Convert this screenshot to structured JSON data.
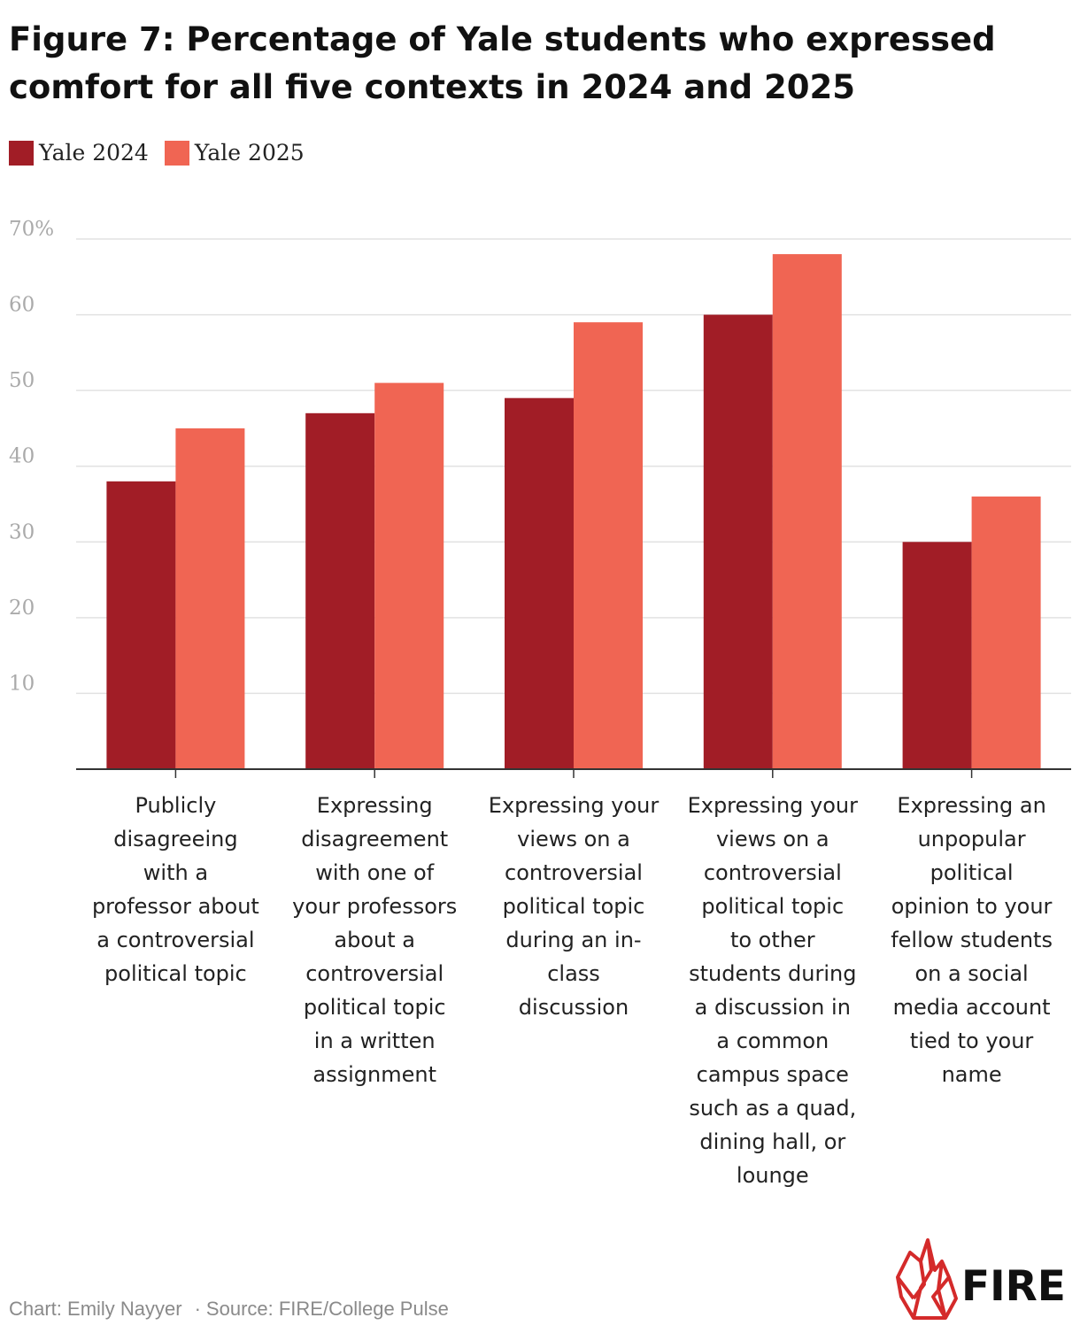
{
  "title": "Figure 7: Percentage of Yale students who expressed comfort for all five contexts in 2024 and 2025",
  "legend": [
    {
      "label": "Yale 2024",
      "color": "#a11d26"
    },
    {
      "label": "Yale 2025",
      "color": "#f06553"
    }
  ],
  "chart_data": {
    "type": "bar",
    "categories": [
      "Publicly disagreeing with a professor about a controversial political topic",
      "Expressing disagreement with one of your professors about a controversial political topic in a written assignment",
      "Expressing your views on a controversial political topic during an in-class discussion",
      "Expressing your views on a controversial political topic to other students during a discussion in a common campus space such as a quad, dining hall, or lounge",
      "Expressing an unpopular political opinion to your fellow students on a social media account tied to your name"
    ],
    "category_lines": [
      [
        "Publicly",
        "disagreeing",
        "with a",
        "professor about",
        "a controversial",
        "political topic"
      ],
      [
        "Expressing",
        "disagreement",
        "with one of",
        "your professors",
        "about a",
        "controversial",
        "political topic",
        "in a written",
        "assignment"
      ],
      [
        "Expressing your",
        "views on a",
        "controversial",
        "political topic",
        "during an in-",
        "class",
        "discussion"
      ],
      [
        "Expressing your",
        "views on a",
        "controversial",
        "political topic",
        "to other",
        "students during",
        "a discussion in",
        "a common",
        "campus space",
        "such as a quad,",
        "dining hall, or",
        "lounge"
      ],
      [
        "Expressing an",
        "unpopular",
        "political",
        "opinion to your",
        "fellow students",
        "on a social",
        "media account",
        "tied to your",
        "name"
      ]
    ],
    "series": [
      {
        "name": "Yale 2024",
        "values": [
          38,
          47,
          49,
          60,
          30
        ]
      },
      {
        "name": "Yale 2025",
        "values": [
          45,
          51,
          59,
          68,
          36
        ]
      }
    ],
    "yticks": [
      10,
      20,
      30,
      40,
      50,
      60,
      70
    ],
    "ytick_labels": [
      "10",
      "20",
      "30",
      "40",
      "50",
      "60",
      "70%"
    ],
    "ylim": [
      0,
      70
    ],
    "grid": true,
    "legend_position": "top-left"
  },
  "footer": {
    "credit": "Chart: Emily Nayyer",
    "separator": "·",
    "source": "Source: FIRE/College Pulse"
  },
  "logo_text": "FIRE",
  "colors": {
    "grid": "#e2e2e2",
    "axis": "#333333",
    "tick_text": "#aaaaaa",
    "label_text": "#222222"
  }
}
